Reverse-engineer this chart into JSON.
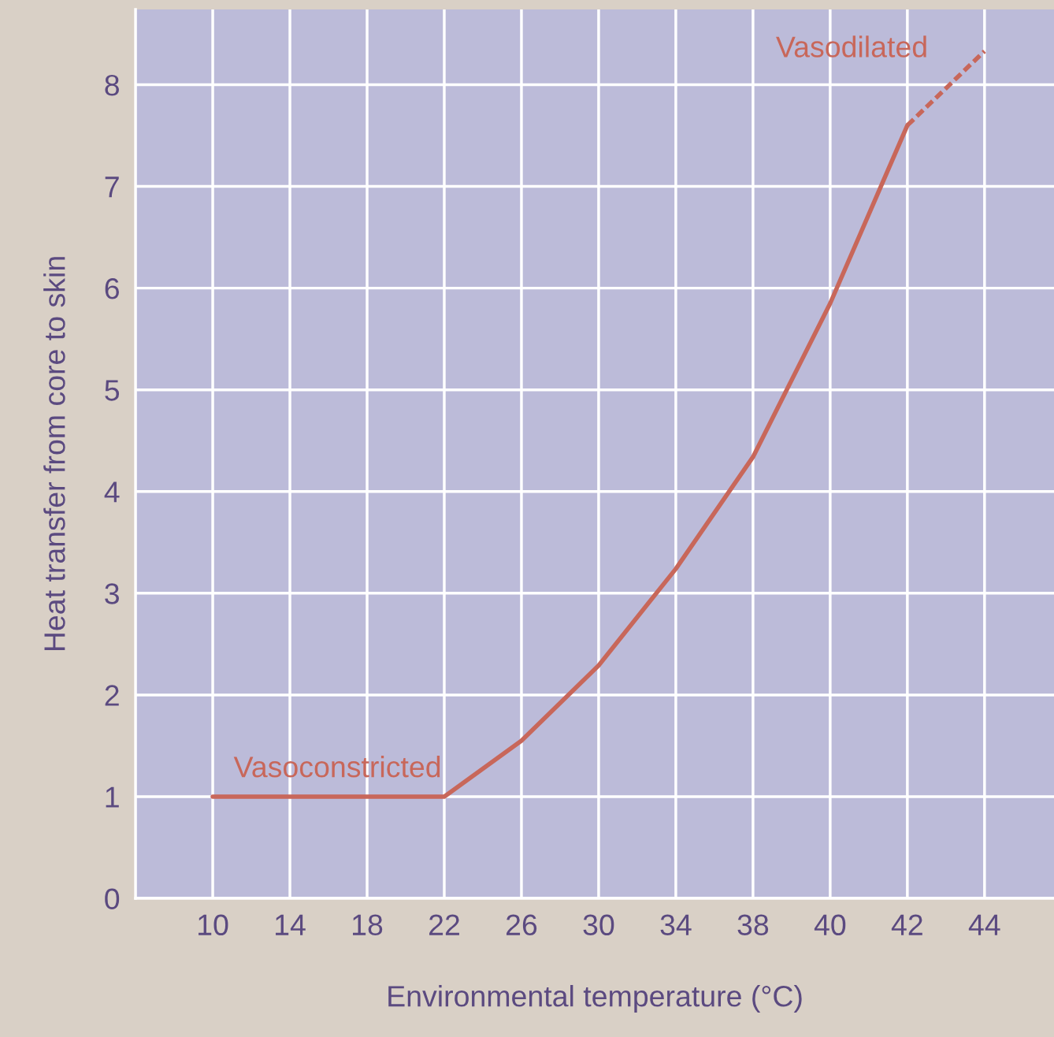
{
  "chart_data": {
    "type": "line",
    "xlabel": "Environmental temperature (°C)",
    "ylabel": "Heat transfer from core to skin",
    "categories": [
      "10",
      "14",
      "18",
      "22",
      "26",
      "30",
      "34",
      "38",
      "40",
      "42",
      "44"
    ],
    "series": [
      {
        "color": "#c8675a",
        "line_style": "solid",
        "values": [
          1,
          1,
          1,
          1,
          1.55,
          2.29,
          3.24,
          4.34,
          5.85,
          7.6,
          null
        ]
      },
      {
        "color": "#c8675a",
        "line_style": "dashed",
        "values": [
          null,
          null,
          null,
          null,
          null,
          null,
          null,
          null,
          null,
          7.6,
          8.33
        ]
      }
    ],
    "ylim": [
      0,
      8.74
    ],
    "yticks": [
      0,
      1,
      2,
      3,
      4,
      5,
      6,
      7,
      8
    ],
    "grid": true,
    "marker": "none",
    "annotations": [
      "Vasoconstricted",
      "Vasodilated"
    ]
  }
}
